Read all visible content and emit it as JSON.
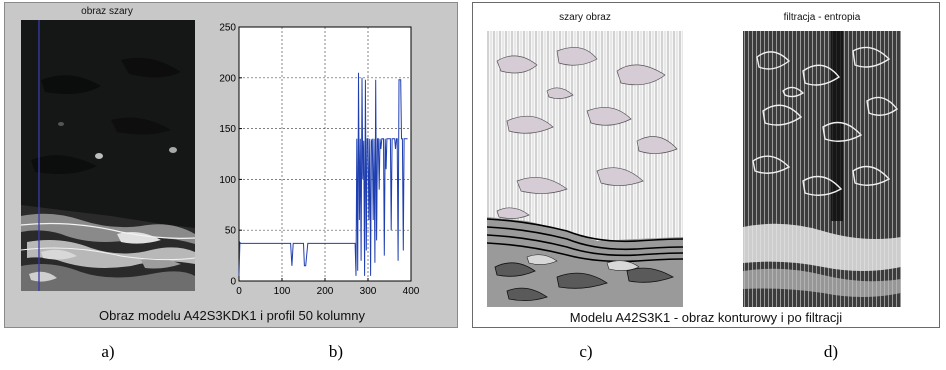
{
  "figure": {
    "left_panel": {
      "image_title": "obraz szary",
      "caption": "Obraz modelu A42S3KDK1 i profil 50 kolumny"
    },
    "right_panel": {
      "left_image_title": "szary obraz",
      "right_image_title": "filtracja - entropia",
      "caption": "Modelu A42S3K1 - obraz konturowy i po filtracji"
    },
    "subfigure_labels": [
      "a)",
      "b)",
      "c)",
      "d)"
    ]
  },
  "colors": {
    "panel_bg": "#c8c8c8",
    "profile_line": "#1f3fb0",
    "column_marker": "#3a3aa8"
  },
  "chart_data": {
    "type": "line",
    "title": "",
    "xlabel": "",
    "ylabel": "",
    "xlim": [
      0,
      400
    ],
    "ylim": [
      0,
      250
    ],
    "xticks": [
      "0",
      "100",
      "200",
      "300",
      "400"
    ],
    "yticks": [
      "0",
      "50",
      "100",
      "150",
      "200",
      "250"
    ],
    "grid": true,
    "series": [
      {
        "x": [
          0,
          2,
          4,
          120,
          123,
          126,
          130,
          134,
          150,
          152,
          155,
          160,
          164,
          270,
          272,
          274,
          276,
          278,
          280,
          282,
          284,
          286,
          288,
          290,
          292,
          294,
          296,
          298,
          300,
          302,
          304,
          306,
          308,
          310,
          312,
          314,
          316,
          318,
          320,
          322,
          324,
          326,
          328,
          330,
          332,
          334,
          336,
          338,
          340,
          342,
          344,
          346,
          348,
          350,
          352,
          354,
          356,
          358,
          360,
          362,
          364,
          366,
          368,
          370,
          372,
          374,
          376,
          378,
          380,
          382,
          384,
          386,
          388,
          390,
          392
        ],
        "y": [
          5,
          38,
          37,
          37,
          15,
          37,
          37,
          37,
          37,
          15,
          15,
          37,
          37,
          37,
          5,
          140,
          10,
          205,
          60,
          140,
          20,
          200,
          100,
          138,
          5,
          198,
          30,
          140,
          140,
          60,
          140,
          5,
          138,
          140,
          60,
          140,
          18,
          198,
          40,
          140,
          140,
          90,
          140,
          130,
          140,
          140,
          140,
          25,
          140,
          110,
          140,
          140,
          140,
          140,
          140,
          50,
          140,
          140,
          140,
          140,
          130,
          140,
          140,
          20,
          198,
          198,
          198,
          140,
          140,
          30,
          140,
          140,
          140,
          140,
          140
        ]
      }
    ]
  }
}
